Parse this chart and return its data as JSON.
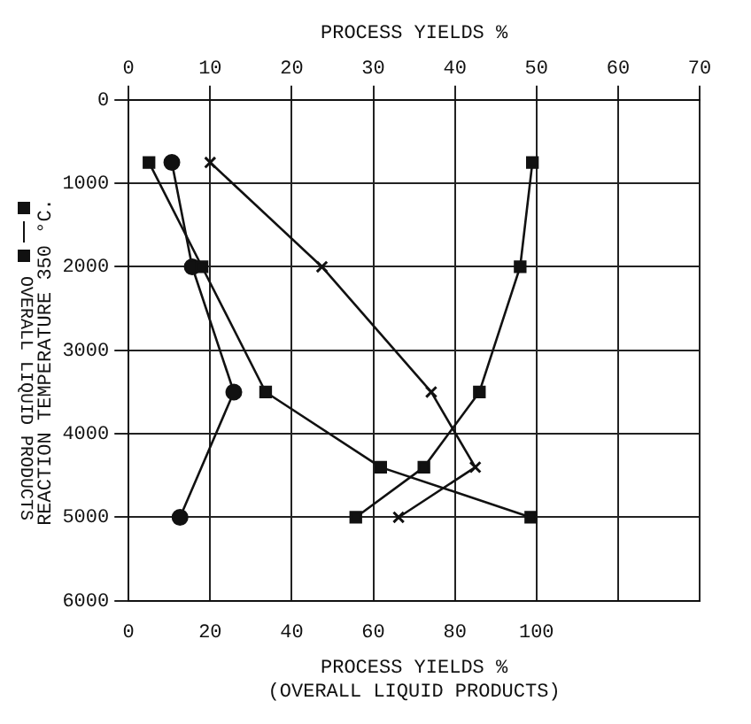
{
  "chart_data": {
    "type": "line",
    "subtitle": "REACTION TEMPERATURE 350 °C.",
    "x2label": "PROCESS YIELDS %",
    "xlabel": "PROCESS YIELDS %\n(OVERALL LIQUID PRODUCTS)",
    "xlim": [
      0,
      140
    ],
    "xticks": [
      0,
      20,
      40,
      60,
      80,
      100
    ],
    "x2lim": [
      0,
      70
    ],
    "x2ticks": [
      0,
      10,
      20,
      30,
      40,
      50,
      60,
      70
    ],
    "ylim": [
      6000,
      0
    ],
    "yticks": [
      0,
      1000,
      2000,
      3000,
      4000,
      5000,
      6000
    ],
    "grid": true,
    "legend": "left",
    "line_style": "solid",
    "series": [
      {
        "color": "#111111",
        "axis": "x2",
        "marker": "square",
        "x": [
          2.5,
          9,
          16.8,
          30.9,
          49.3
        ],
        "values": [
          750,
          2000,
          3500,
          4400,
          5000
        ]
      },
      {
        "color": "#111111",
        "axis": "x2",
        "marker": "circle",
        "x": [
          5.3,
          7.8,
          12.9,
          6.3
        ],
        "values": [
          750,
          2000,
          3500,
          5000
        ]
      },
      {
        "color": "#111111",
        "axis": "x2",
        "marker": "cross",
        "x": [
          10,
          23.7,
          37.1,
          42.5,
          33.1
        ],
        "values": [
          750,
          2000,
          3500,
          4400,
          5000
        ]
      },
      {
        "name": "OVERALL LIQUID PRODUCTS",
        "color": "#111111",
        "marker": "square",
        "x": [
          99,
          96,
          86,
          72.4,
          55.7
        ],
        "values": [
          750,
          2000,
          3500,
          4400,
          5000
        ]
      }
    ]
  }
}
